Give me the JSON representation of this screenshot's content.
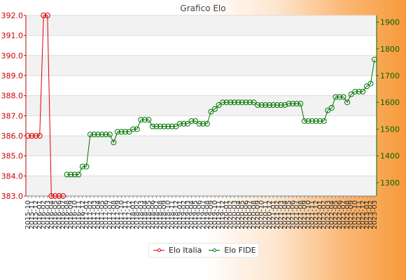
{
  "chart_data": {
    "type": "line",
    "title": "Grafico Elo",
    "colors": {
      "left_axis": "#cc0000",
      "right_axis": "#006600",
      "elo_italia": "#dd0000",
      "elo_fide": "#007700"
    },
    "left_axis": {
      "ylim": [
        383.0,
        392.0
      ],
      "ticks": [
        "383.0",
        "384.0",
        "385.0",
        "386.0",
        "387.0",
        "388.0",
        "389.0",
        "390.0",
        "391.0",
        "392.0"
      ]
    },
    "right_axis": {
      "ylim": [
        1250,
        1925
      ],
      "ticks": [
        "1300",
        "1400",
        "1500",
        "1600",
        "1700",
        "1800",
        "1900"
      ]
    },
    "x_count": 90,
    "x_tick_labels": [
      "2015-10",
      "2015-11",
      "2015-12",
      "2016-01",
      "2016-02",
      "2016-03",
      "2016-04",
      "2016-05",
      "2016-06",
      "2016-07",
      "2016-08",
      "2016-09",
      "2016-10",
      "2016-11",
      "2016-12",
      "2017-01",
      "2017-02",
      "2017-03",
      "2017-04",
      "2017-05",
      "2017-06",
      "2017-07",
      "2017-08",
      "2017-09",
      "2017-10",
      "2017-11",
      "2017-12",
      "2018-01",
      "2018-02",
      "2018-03",
      "2018-04",
      "2018-05",
      "2018-06",
      "2018-07",
      "2018-08",
      "2018-09",
      "2018-10",
      "2018-11",
      "2018-12",
      "2019-01",
      "2019-02",
      "2019-03",
      "2019-04",
      "2019-05",
      "2019-06",
      "2019-07",
      "2019-08",
      "2019-09",
      "2019-10",
      "2019-11",
      "2019-12",
      "2020-01",
      "2020-02",
      "2020-03",
      "2020-04",
      "2020-05",
      "2020-06",
      "2020-07",
      "2020-08",
      "2020-09",
      "2020-10",
      "2020-11",
      "2020-12",
      "2021-01",
      "2021-02",
      "2021-03",
      "2021-04",
      "2021-05",
      "2021-06",
      "2021-07",
      "2021-08",
      "2021-09",
      "2021-10",
      "2021-11",
      "2021-12",
      "2022-01",
      "2022-02",
      "2022-03",
      "2022-04",
      "2022-05",
      "2022-06",
      "2022-07",
      "2022-08",
      "2022-09",
      "2022-10",
      "2022-11",
      "2022-12",
      "2023-01",
      "2023-02",
      "2023-03"
    ],
    "series": [
      {
        "name": "Elo Italia",
        "axis": "left",
        "values": [
          386.0,
          386.0,
          386.0,
          386.0,
          392.0,
          392.0,
          383.0,
          383.0,
          383.0,
          383.0
        ]
      },
      {
        "name": "Elo FIDE",
        "axis": "right",
        "values": [
          null,
          null,
          null,
          null,
          null,
          null,
          null,
          null,
          null,
          null,
          1330,
          1330,
          1330,
          1330,
          1360,
          1360,
          1480,
          1480,
          1480,
          1480,
          1480,
          1480,
          1450,
          1490,
          1490,
          1490,
          1490,
          1500,
          1500,
          1535,
          1535,
          1535,
          1510,
          1510,
          1510,
          1510,
          1510,
          1510,
          1510,
          1520,
          1520,
          1520,
          1530,
          1530,
          1520,
          1520,
          1520,
          1565,
          1575,
          1590,
          1600,
          1600,
          1600,
          1600,
          1600,
          1600,
          1600,
          1600,
          1600,
          1590,
          1590,
          1590,
          1590,
          1590,
          1590,
          1590,
          1590,
          1595,
          1595,
          1595,
          1595,
          1530,
          1530,
          1530,
          1530,
          1530,
          1530,
          1570,
          1580,
          1620,
          1620,
          1620,
          1600,
          1630,
          1640,
          1640,
          1640,
          1660,
          1670,
          1760
        ]
      }
    ]
  },
  "legend": {
    "items": [
      "Elo Italia",
      "Elo FIDE"
    ]
  }
}
